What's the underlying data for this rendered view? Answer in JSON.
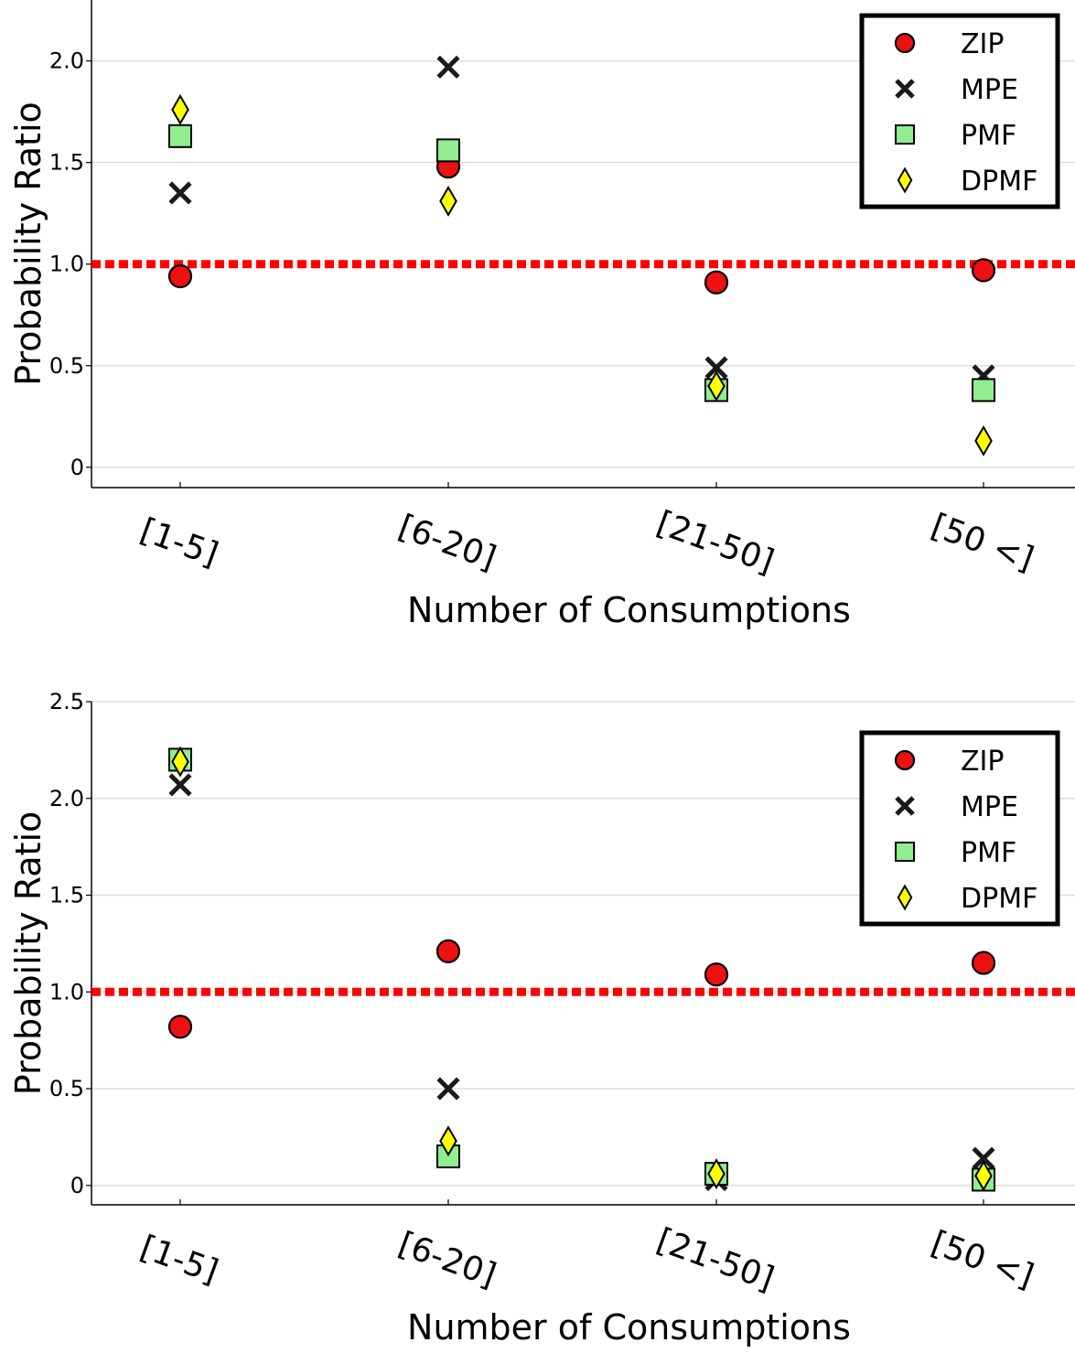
{
  "chart_data": [
    {
      "type": "scatter",
      "title": "",
      "xlabel": "Number of Consumptions",
      "ylabel": "Probability Ratio",
      "categories": [
        "[1-5]",
        "[6-20]",
        "[21-50]",
        "[50 <]"
      ],
      "ylim": [
        -0.1,
        2.3
      ],
      "yticks": [
        0,
        0.5,
        1.0,
        1.5,
        2.0
      ],
      "ytick_labels": [
        "0",
        "0.5",
        "1.0",
        "1.5",
        "2.0"
      ],
      "reference_line": 1.0,
      "grid": "horizontal",
      "legend_position": "top-right",
      "series": [
        {
          "name": "ZIP",
          "marker": "circle",
          "color": "#ee1111",
          "values": [
            0.94,
            1.48,
            0.91,
            0.97
          ]
        },
        {
          "name": "MPE",
          "marker": "x",
          "color": "#1a1a1a",
          "values": [
            1.35,
            1.97,
            0.49,
            0.45
          ]
        },
        {
          "name": "PMF",
          "marker": "square",
          "color": "#90ee90",
          "values": [
            1.63,
            1.56,
            0.38,
            0.38
          ]
        },
        {
          "name": "DPMF",
          "marker": "diamond",
          "color": "#ffff00",
          "values": [
            1.76,
            1.31,
            0.4,
            0.13
          ]
        }
      ]
    },
    {
      "type": "scatter",
      "title": "",
      "xlabel": "Number of Consumptions",
      "ylabel": "Probability Ratio",
      "categories": [
        "[1-5]",
        "[6-20]",
        "[21-50]",
        "[50 <]"
      ],
      "ylim": [
        -0.1,
        2.5
      ],
      "yticks": [
        0,
        0.5,
        1.0,
        1.5,
        2.0,
        2.5
      ],
      "ytick_labels": [
        "0",
        "0.5",
        "1.0",
        "1.5",
        "2.0",
        "2.5"
      ],
      "reference_line": 1.0,
      "grid": "horizontal",
      "legend_position": "top-right",
      "series": [
        {
          "name": "ZIP",
          "marker": "circle",
          "color": "#ee1111",
          "values": [
            0.82,
            1.21,
            1.09,
            1.15
          ]
        },
        {
          "name": "MPE",
          "marker": "x",
          "color": "#1a1a1a",
          "values": [
            2.07,
            0.5,
            0.03,
            0.14
          ]
        },
        {
          "name": "PMF",
          "marker": "square",
          "color": "#90ee90",
          "values": [
            2.2,
            0.15,
            0.06,
            0.03
          ]
        },
        {
          "name": "DPMF",
          "marker": "diamond",
          "color": "#ffff00",
          "values": [
            2.19,
            0.23,
            0.06,
            0.05
          ]
        }
      ]
    }
  ]
}
